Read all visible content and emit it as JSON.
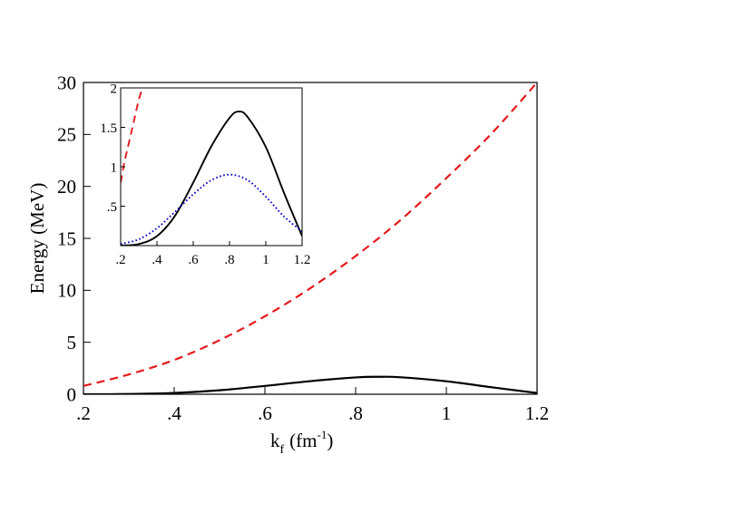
{
  "chart_data": [
    {
      "type": "line",
      "xlabel": "k",
      "xlabel_sub": "f",
      "xlabel_unit_open": "(fm",
      "xlabel_unit_exp": "-1",
      "xlabel_unit_close": ")",
      "ylabel": "Energy (MeV)",
      "xlim": [
        0.2,
        1.2
      ],
      "ylim": [
        0,
        30
      ],
      "xticks": [
        0.2,
        0.4,
        0.6,
        0.8,
        1.0,
        1.2
      ],
      "xtick_labels": [
        ".2",
        ".4",
        ".6",
        ".8",
        "1",
        "1.2"
      ],
      "yticks": [
        0,
        5,
        10,
        15,
        20,
        25,
        30
      ],
      "ytick_labels": [
        "0",
        "5",
        "10",
        "15",
        "20",
        "25",
        "30"
      ],
      "grid": false,
      "series": [
        {
          "style": "dashed",
          "color": "#e41a1c",
          "x": [
            0.2,
            0.3,
            0.4,
            0.5,
            0.6,
            0.7,
            0.8,
            0.9,
            1.0,
            1.1,
            1.2
          ],
          "y": [
            0.8,
            1.9,
            3.3,
            5.2,
            7.5,
            10.2,
            13.3,
            16.8,
            20.8,
            25.1,
            30.0
          ]
        },
        {
          "style": "solid",
          "color": "#000000",
          "x": [
            0.2,
            0.3,
            0.4,
            0.5,
            0.6,
            0.7,
            0.8,
            0.85,
            0.9,
            1.0,
            1.1,
            1.2
          ],
          "y": [
            0.0,
            0.02,
            0.12,
            0.38,
            0.8,
            1.26,
            1.62,
            1.68,
            1.63,
            1.25,
            0.67,
            0.12
          ]
        }
      ]
    },
    {
      "type": "line",
      "placement": "inset-top-left",
      "xlim": [
        0.2,
        1.2
      ],
      "ylim": [
        0,
        2
      ],
      "xticks": [
        0.2,
        0.4,
        0.6,
        0.8,
        1.0,
        1.2
      ],
      "xtick_labels": [
        ".2",
        ".4",
        ".6",
        ".8",
        "1",
        "1.2"
      ],
      "yticks": [
        0.5,
        1.0,
        1.5,
        2.0
      ],
      "ytick_labels": [
        ".5",
        "1",
        "1.5",
        "2"
      ],
      "grid": false,
      "series": [
        {
          "style": "dashed",
          "color": "#e41a1c",
          "x": [
            0.2,
            0.22,
            0.24,
            0.26,
            0.28,
            0.3,
            0.32
          ],
          "y": [
            0.8,
            1.05,
            1.25,
            1.45,
            1.65,
            1.85,
            2.0
          ]
        },
        {
          "style": "solid",
          "color": "#000000",
          "x": [
            0.2,
            0.3,
            0.4,
            0.5,
            0.6,
            0.7,
            0.8,
            0.85,
            0.9,
            1.0,
            1.1,
            1.2
          ],
          "y": [
            0.0,
            0.02,
            0.12,
            0.38,
            0.8,
            1.26,
            1.62,
            1.7,
            1.63,
            1.25,
            0.67,
            0.12
          ]
        },
        {
          "style": "dotted",
          "color": "#0000cc",
          "x": [
            0.2,
            0.3,
            0.4,
            0.5,
            0.6,
            0.7,
            0.8,
            0.9,
            1.0,
            1.1,
            1.2
          ],
          "y": [
            0.02,
            0.08,
            0.22,
            0.43,
            0.65,
            0.83,
            0.9,
            0.83,
            0.62,
            0.37,
            0.18
          ]
        }
      ]
    }
  ]
}
